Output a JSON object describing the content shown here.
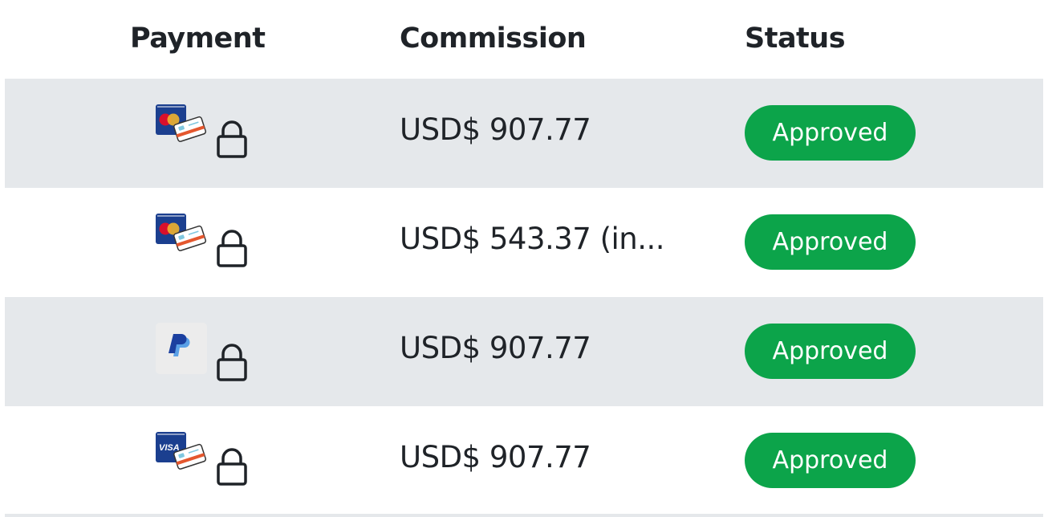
{
  "headers": {
    "payment": "Payment",
    "commission": "Commission",
    "status": "Status"
  },
  "rows": [
    {
      "payment_icon": "mastercard-card-icon",
      "secure_icon": "lock-icon",
      "commission": "USD$ 907.77",
      "status": "Approved"
    },
    {
      "payment_icon": "mastercard-card-icon",
      "secure_icon": "lock-icon",
      "commission": "USD$ 543.37 (in...",
      "status": "Approved"
    },
    {
      "payment_icon": "paypal-icon",
      "secure_icon": "lock-icon",
      "commission": "USD$ 907.77",
      "status": "Approved"
    },
    {
      "payment_icon": "visa-card-icon",
      "secure_icon": "lock-icon",
      "commission": "USD$ 907.77",
      "status": "Approved"
    }
  ],
  "colors": {
    "approved": "#0ca44a",
    "row_alt": "#e5e8eb",
    "text": "#1f2328"
  }
}
